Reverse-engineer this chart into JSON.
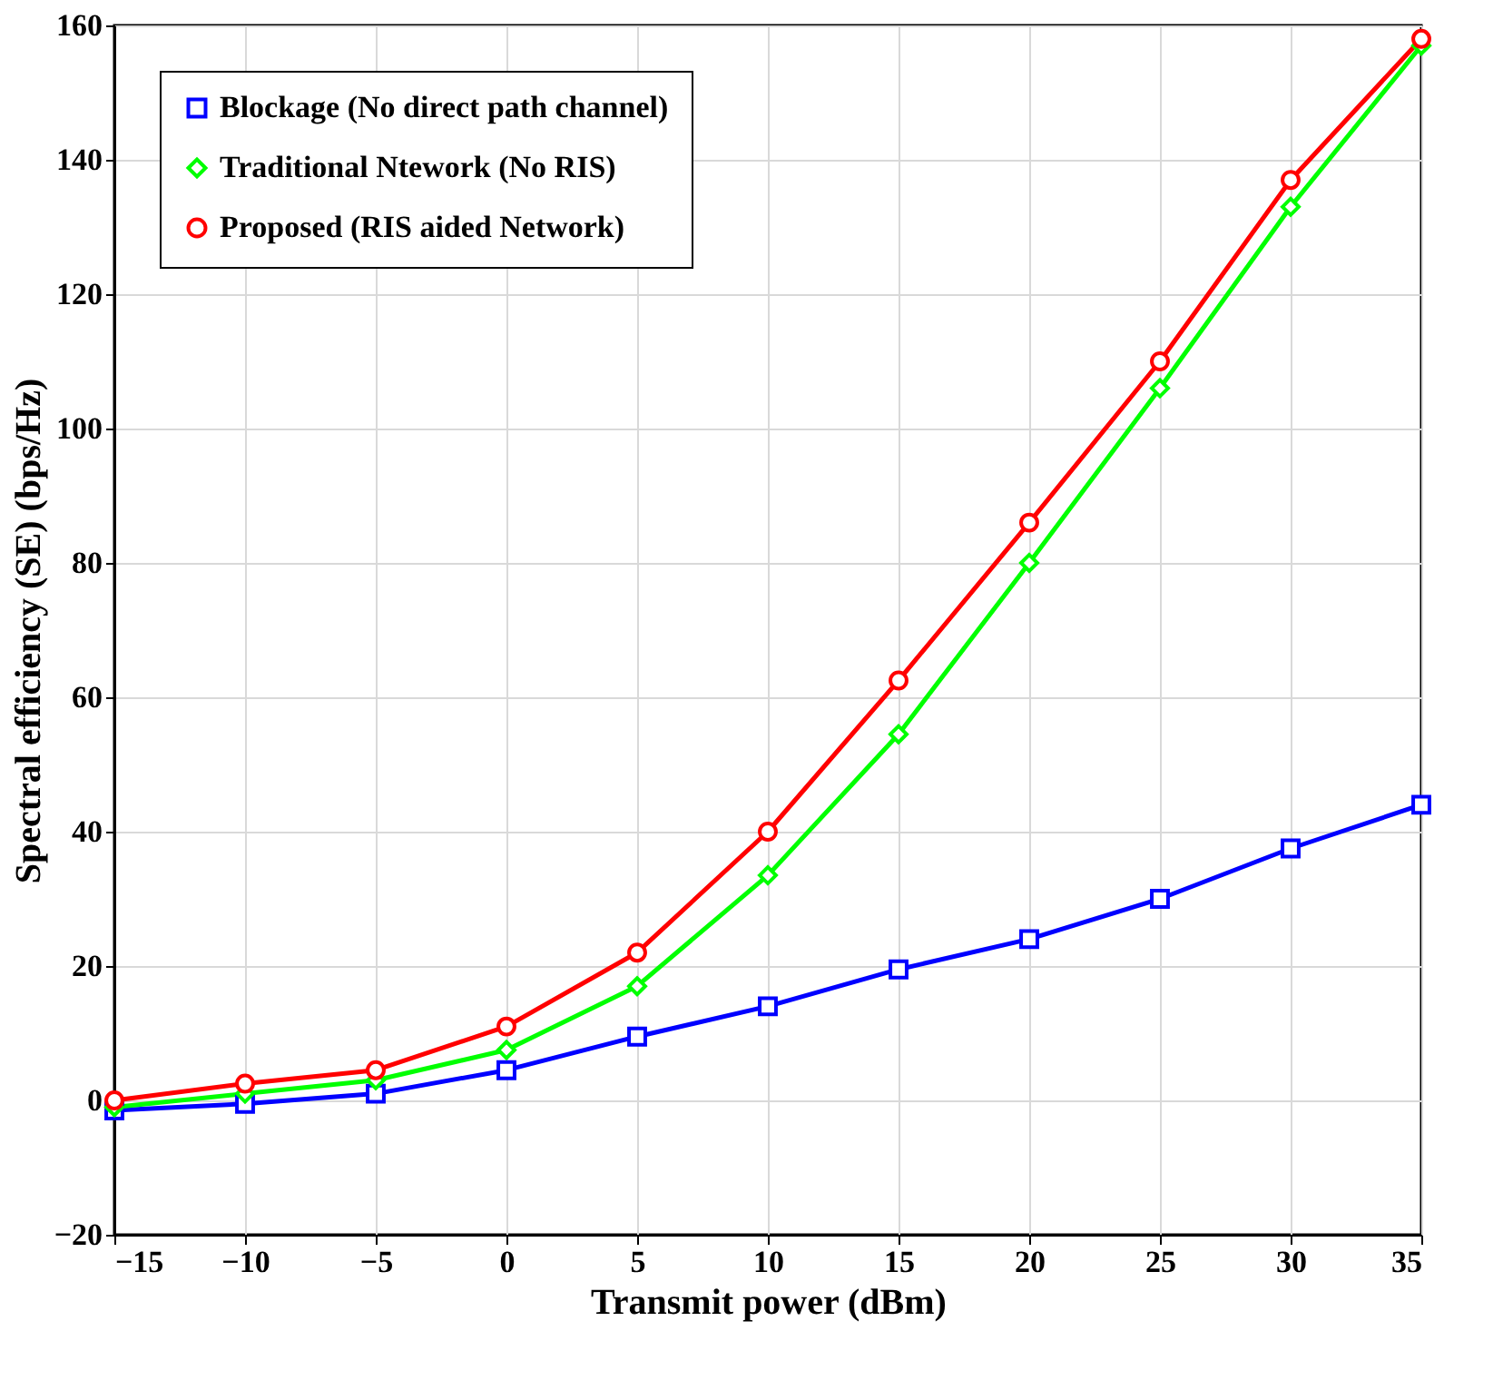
{
  "chart_data": {
    "type": "line",
    "xlabel": "Transmit power (dBm)",
    "ylabel": "Spectral efficiency (SE) (bps/Hz)",
    "x": [
      -15,
      -10,
      -5,
      0,
      5,
      10,
      15,
      20,
      25,
      30,
      35
    ],
    "series": [
      {
        "name": "Blockage (No direct path channel)",
        "color": "#0000ff",
        "marker": "square",
        "values": [
          -1.5,
          -0.5,
          1,
          4.5,
          9.5,
          14,
          19.5,
          24,
          30,
          37.5,
          44
        ]
      },
      {
        "name": "Traditional  Ntework (No RIS)",
        "color": "#00ff00",
        "marker": "diamond",
        "values": [
          -1,
          1,
          3,
          7.5,
          17,
          33.5,
          54.5,
          80,
          106,
          133,
          157
        ]
      },
      {
        "name": "Proposed (RIS aided Network)",
        "color": "#ff0000",
        "marker": "circle",
        "values": [
          0,
          2.5,
          4.5,
          11,
          22,
          40,
          62.5,
          86,
          110,
          137,
          158
        ]
      }
    ],
    "xlim": [
      -15,
      35
    ],
    "xticks": [
      -15,
      -10,
      -5,
      0,
      5,
      10,
      15,
      20,
      25,
      30,
      35
    ],
    "ylim": [
      -20,
      160
    ],
    "yticks": [
      -20,
      0,
      20,
      40,
      60,
      80,
      100,
      120,
      140,
      160
    ],
    "grid": true,
    "legend": "top left",
    "line_style": "solid"
  }
}
